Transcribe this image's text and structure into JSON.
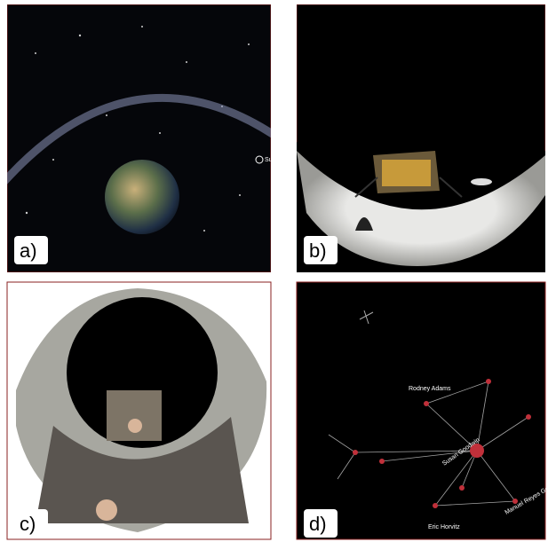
{
  "panels": [
    {
      "label": "a)",
      "annotations": [
        "Sun"
      ]
    },
    {
      "label": "b)"
    },
    {
      "label": "c)"
    },
    {
      "label": "d)",
      "annotations": [
        "Susan Goodwin",
        "Eric Horvitz",
        "Manuel Reyes Gomez",
        "Rodney Adams"
      ]
    }
  ]
}
